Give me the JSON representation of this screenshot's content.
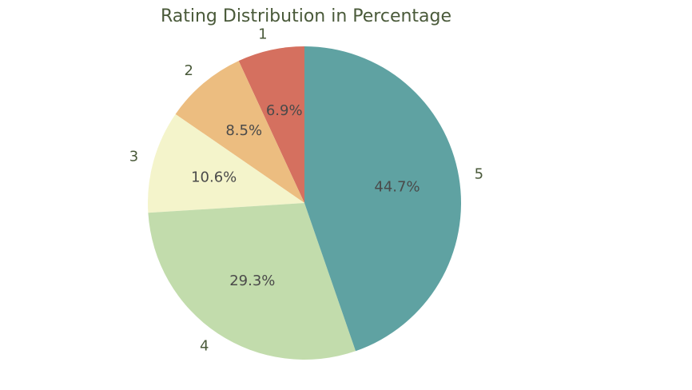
{
  "chart_data": {
    "type": "pie",
    "title": "Rating Distribution in Percentage",
    "start_angle_deg": 90,
    "direction": "counterclockwise",
    "slices": [
      {
        "label": "1",
        "percent_label": "6.9%",
        "value": 6.9,
        "color": "#d5705f"
      },
      {
        "label": "2",
        "percent_label": "8.5%",
        "value": 8.5,
        "color": "#ecbd80"
      },
      {
        "label": "3",
        "percent_label": "10.6%",
        "value": 10.6,
        "color": "#f4f4cb"
      },
      {
        "label": "4",
        "percent_label": "29.3%",
        "value": 29.3,
        "color": "#c2dcac"
      },
      {
        "label": "5",
        "percent_label": "44.7%",
        "value": 44.7,
        "color": "#5fa2a2"
      }
    ]
  }
}
